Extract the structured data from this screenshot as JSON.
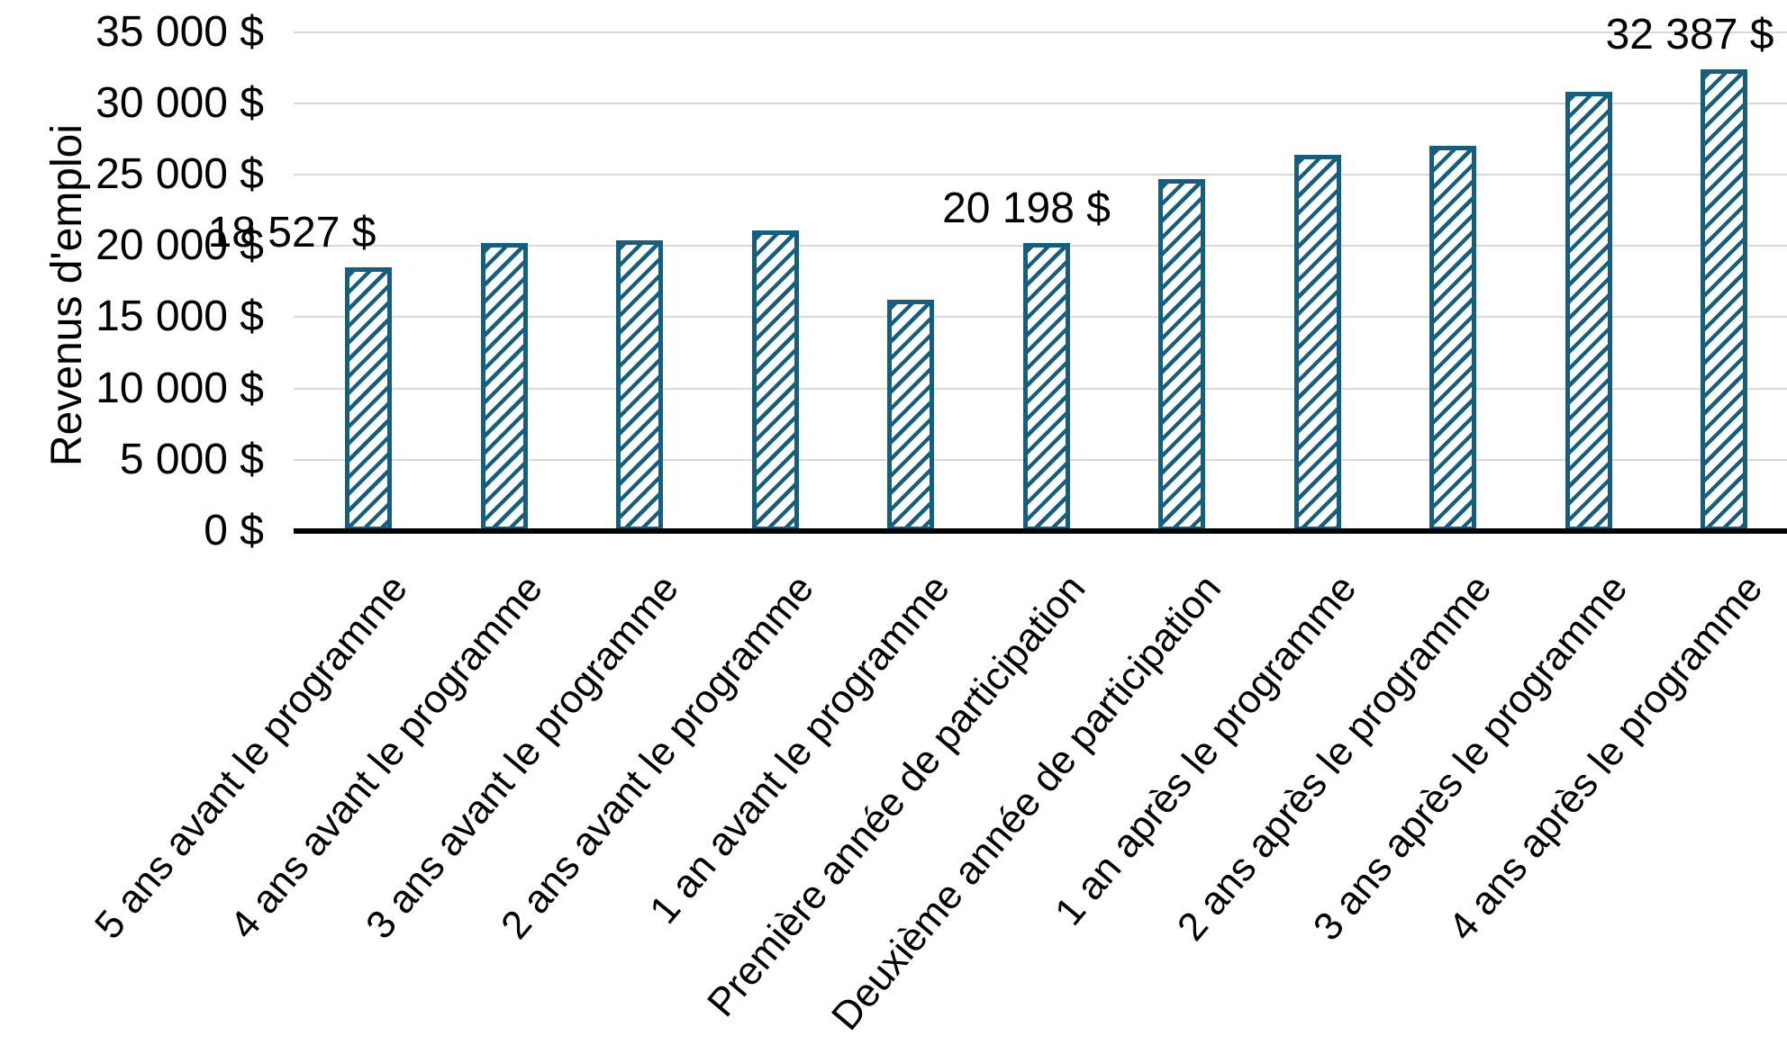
{
  "chart_data": {
    "type": "bar",
    "ylabel": "Revenus d'emploi",
    "xlabel": "",
    "ylim": [
      0,
      35000
    ],
    "grid": "horizontal-gridlines",
    "legend": "none",
    "x_labels_rotation_deg": -50,
    "bar_color_hex": "#155E7D",
    "bar_fill_style": "diagonal-hatch",
    "gridline_color_hex": "#D9D9D9",
    "axis_color_hex": "#000000",
    "categories": [
      "5 ans avant le programme",
      "4 ans avant le programme",
      "3 ans avant le programme",
      "2 ans avant le programme",
      "1 an avant le programme",
      "Première année de participation",
      "Deuxième année de participation",
      "1 an après le programme",
      "2 ans après le programme",
      "3 ans après le programme",
      "4 ans après le programme"
    ],
    "values": [
      18527,
      20200,
      20400,
      21100,
      16200,
      20198,
      24700,
      26400,
      27000,
      30800,
      32387
    ],
    "data_labels": [
      {
        "index": 0,
        "text": "18 527 $"
      },
      {
        "index": 5,
        "text": "20 198 $"
      },
      {
        "index": 10,
        "text": "32 387 $"
      }
    ],
    "y_ticks": [
      {
        "value": 0,
        "label": "0 $"
      },
      {
        "value": 5000,
        "label": "5 000 $"
      },
      {
        "value": 10000,
        "label": "10 000 $"
      },
      {
        "value": 15000,
        "label": "15 000 $"
      },
      {
        "value": 20000,
        "label": "20 000 $"
      },
      {
        "value": 25000,
        "label": "25 000 $"
      },
      {
        "value": 30000,
        "label": "30 000 $"
      },
      {
        "value": 35000,
        "label": "35 000 $"
      }
    ]
  }
}
